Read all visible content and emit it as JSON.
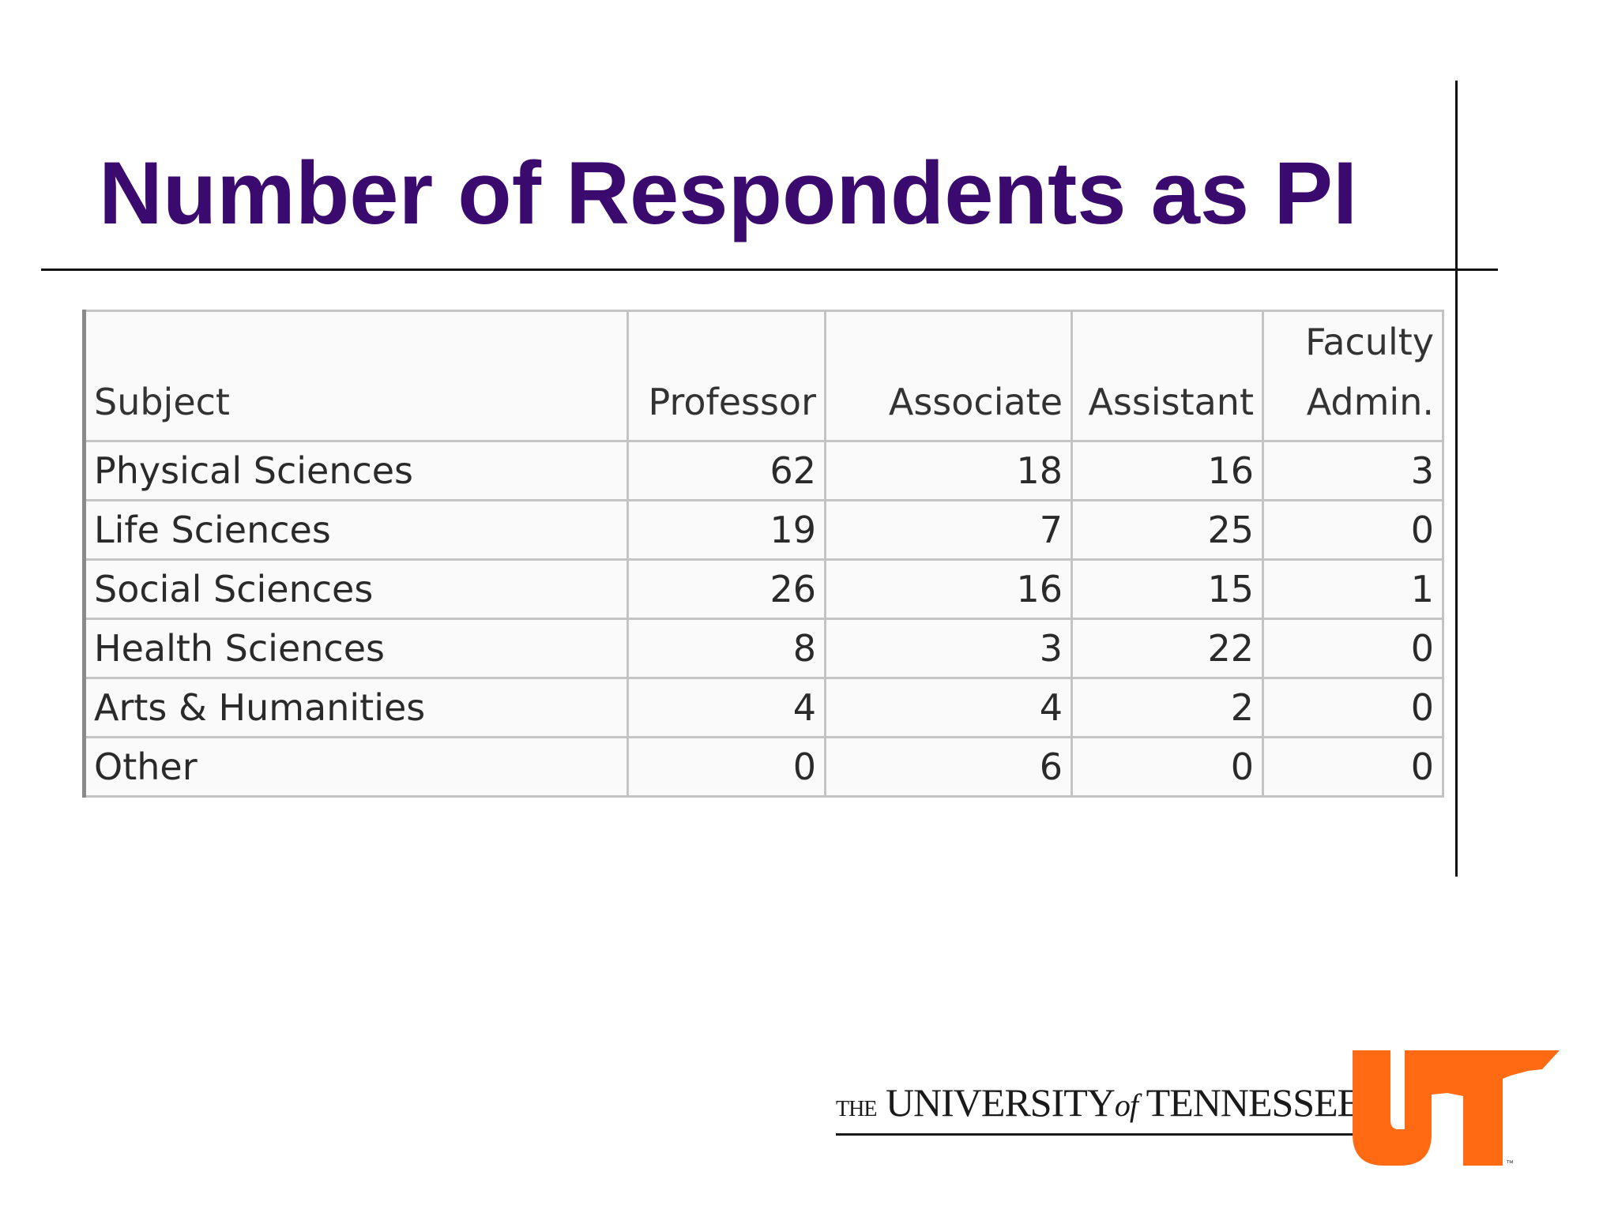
{
  "slide": {
    "title": "Number of Respondents as PI"
  },
  "table": {
    "headers": {
      "subject": "Subject",
      "professor": "Professor",
      "associate": "Associate",
      "assistant": "Assistant",
      "faculty_admin_line1": "Faculty",
      "faculty_admin_line2": "Admin."
    },
    "rows": [
      {
        "subject": "Physical Sciences",
        "professor": "62",
        "associate": "18",
        "assistant": "16",
        "faculty_admin": "3"
      },
      {
        "subject": "Life Sciences",
        "professor": "19",
        "associate": "7",
        "assistant": "25",
        "faculty_admin": "0"
      },
      {
        "subject": "Social Sciences",
        "professor": "26",
        "associate": "16",
        "assistant": "15",
        "faculty_admin": "1"
      },
      {
        "subject": "Health Sciences",
        "professor": "8",
        "associate": "3",
        "assistant": "22",
        "faculty_admin": "0"
      },
      {
        "subject": "Arts & Humanities",
        "professor": "4",
        "associate": "4",
        "assistant": "2",
        "faculty_admin": "0"
      },
      {
        "subject": "Other",
        "professor": "0",
        "associate": "6",
        "assistant": "0",
        "faculty_admin": "0"
      }
    ]
  },
  "footer": {
    "logo_the": "THE",
    "logo_university": "UNIVERSITY",
    "logo_of": "of",
    "logo_tennessee": "TENNESSEE",
    "ut_mark_color": "#ff6a13",
    "trademark": "™"
  },
  "colors": {
    "title": "#3a0a6e",
    "rule": "#111111",
    "ut_orange": "#ff6a13"
  }
}
